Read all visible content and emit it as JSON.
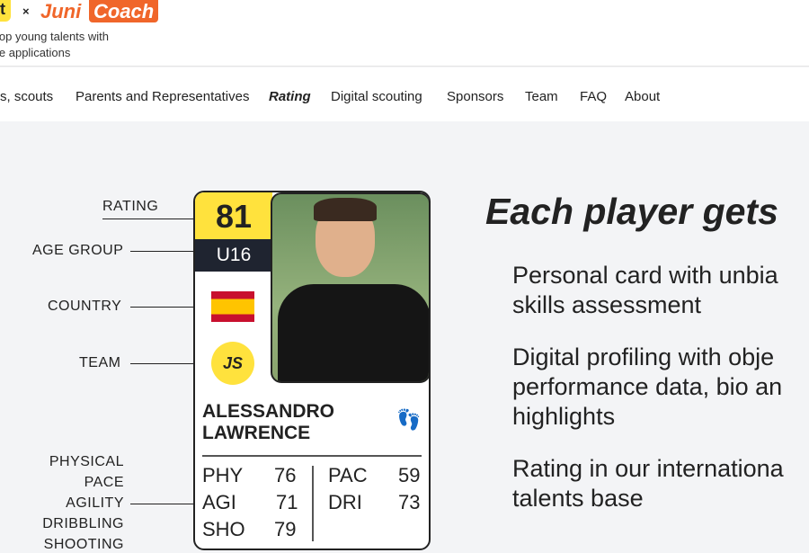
{
  "header": {
    "logo_left": "t",
    "times": "×",
    "logo_juni": "Juni",
    "logo_coach": "Coach",
    "tagline_1": "lop young talents with",
    "tagline_2": "le applications"
  },
  "nav": [
    "s, scouts",
    "Parents and Representatives",
    "Rating",
    "Digital scouting",
    "Sponsors",
    "Team",
    "FAQ",
    "About"
  ],
  "labels": {
    "rating": "RATING",
    "age": "AGE GROUP",
    "country": "COUNTRY",
    "team": "TEAM",
    "physical": "PHYSICAL",
    "pace": "PACE",
    "agility": "AGILITY",
    "dribbling": "DRIBBLING",
    "shooting": "SHOOTING"
  },
  "card": {
    "rating": "81",
    "age_group": "U16",
    "country": "Spain",
    "team_initials": "JS",
    "name_1": "ALESSANDRO",
    "name_2": "LAWRENCE",
    "stats": [
      {
        "k": "PHY",
        "v": "76"
      },
      {
        "k": "AGI",
        "v": "71"
      },
      {
        "k": "SHO",
        "v": "79"
      },
      {
        "k": "PAC",
        "v": "59"
      },
      {
        "k": "DRI",
        "v": "73"
      }
    ]
  },
  "headline": "Each player gets",
  "features": [
    [
      "Personal card with unbia",
      "skills assessment"
    ],
    [
      "Digital profiling with obje",
      "performance data, bio an",
      "highlights"
    ],
    [
      "Rating in our internationa",
      "talents base"
    ]
  ],
  "colors": {
    "accent_yellow": "#ffe23d",
    "brand_orange": "#f0662a",
    "dark": "#1f2430"
  }
}
